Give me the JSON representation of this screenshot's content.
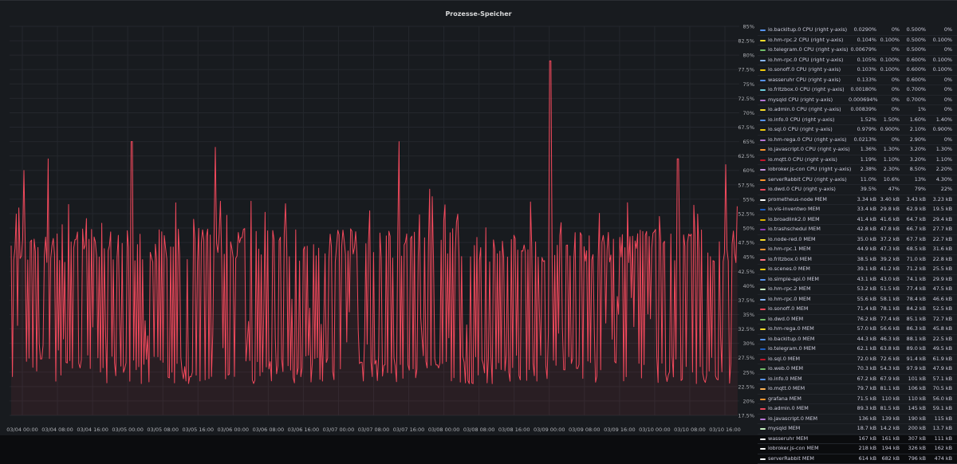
{
  "panel": {
    "title": "Prozesse-Speicher"
  },
  "chart_data": {
    "type": "line",
    "title": "Prozesse-Speicher",
    "right_axis": {
      "ticks": [
        "85%",
        "82.5%",
        "80%",
        "77.5%",
        "75%",
        "72.5%",
        "70%",
        "67.5%",
        "65%",
        "62.5%",
        "60%",
        "57.5%",
        "55%",
        "52.5%",
        "50%",
        "47.5%",
        "45%",
        "42.5%",
        "40%",
        "37.5%",
        "35%",
        "32.5%",
        "30%",
        "27.5%",
        "25%",
        "22.5%",
        "20%",
        "17.5%"
      ],
      "range": [
        17.5,
        85
      ]
    },
    "x_ticks": [
      "03/04 00:00",
      "03/04 08:00",
      "03/04 16:00",
      "03/05 00:00",
      "03/05 08:00",
      "03/05 16:00",
      "03/06 00:00",
      "03/06 08:00",
      "03/06 16:00",
      "03/07 00:00",
      "03/07 08:00",
      "03/07 16:00",
      "03/08 00:00",
      "03/08 08:00",
      "03/08 16:00",
      "03/09 00:00",
      "03/09 08:00",
      "03/09 16:00",
      "03/10 00:00",
      "03/10 08:00",
      "03/10 16:00"
    ],
    "grid": true,
    "series_color": "#f2495c",
    "visible_series": "io.dwd.0 CPU (right y-axis)",
    "series_summary": {
      "baseline": 47,
      "low": 23,
      "peak": 79,
      "peak_at": "03/09 00:00"
    }
  },
  "legend": {
    "rows": [
      {
        "name": "io.backitup.0 CPU (right y-axis)",
        "color": "#5794f2",
        "v": [
          "0.0290%",
          "0%",
          "0.500%",
          "0%"
        ]
      },
      {
        "name": "io.hm-rpc.2 CPU (right y-axis)",
        "color": "#fade2a",
        "v": [
          "0.104%",
          "0.100%",
          "0.500%",
          "0.100%"
        ]
      },
      {
        "name": "io.telegram.0 CPU (right y-axis)",
        "color": "#73bf69",
        "v": [
          "0.00679%",
          "0%",
          "0.500%",
          "0%"
        ]
      },
      {
        "name": "io.hm-rpc.0 CPU (right y-axis)",
        "color": "#8ab8ff",
        "v": [
          "0.105%",
          "0.100%",
          "0.600%",
          "0.100%"
        ]
      },
      {
        "name": "io.sonoff.0 CPU (right y-axis)",
        "color": "#f2cc0c",
        "v": [
          "0.103%",
          "0.100%",
          "0.600%",
          "0.100%"
        ]
      },
      {
        "name": "wasseruhr CPU (right y-axis)",
        "color": "#5794f2",
        "v": [
          "0.133%",
          "0%",
          "0.600%",
          "0%"
        ]
      },
      {
        "name": "io.fritzbox.0 CPU (right y-axis)",
        "color": "#6ed0e0",
        "v": [
          "0.00180%",
          "0%",
          "0.700%",
          "0%"
        ]
      },
      {
        "name": "mysqld CPU (right y-axis)",
        "color": "#b877d9",
        "v": [
          "0.000694%",
          "0%",
          "0.700%",
          "0%"
        ]
      },
      {
        "name": "io.admin.0 CPU (right y-axis)",
        "color": "#fade2a",
        "v": [
          "0.00839%",
          "0%",
          "1%",
          "0%"
        ]
      },
      {
        "name": "io.info.0 CPU (right y-axis)",
        "color": "#5794f2",
        "v": [
          "1.52%",
          "1.50%",
          "1.60%",
          "1.40%"
        ]
      },
      {
        "name": "io.sql.0 CPU (right y-axis)",
        "color": "#f2cc0c",
        "v": [
          "0.979%",
          "0.900%",
          "2.10%",
          "0.900%"
        ]
      },
      {
        "name": "io.hm-rega.0 CPU (right y-axis)",
        "color": "#b877d9",
        "v": [
          "0.0213%",
          "0%",
          "2.90%",
          "0%"
        ]
      },
      {
        "name": "io.javascript.0 CPU (right y-axis)",
        "color": "#ff9830",
        "v": [
          "1.36%",
          "1.30%",
          "3.20%",
          "1.30%"
        ]
      },
      {
        "name": "io.mqtt.0 CPU (right y-axis)",
        "color": "#c4162a",
        "v": [
          "1.19%",
          "1.10%",
          "3.20%",
          "1.10%"
        ]
      },
      {
        "name": "iobroker.js-con CPU (right y-axis)",
        "color": "#ca95e5",
        "v": [
          "2.38%",
          "2.30%",
          "8.50%",
          "2.20%"
        ]
      },
      {
        "name": "serverRabbit CPU (right y-axis)",
        "color": "#ff9830",
        "v": [
          "11.0%",
          "10.6%",
          "13%",
          "4.30%"
        ]
      },
      {
        "name": "io.dwd.0 CPU (right y-axis)",
        "color": "#f2495c",
        "v": [
          "39.5%",
          "47%",
          "79%",
          "22%"
        ]
      },
      {
        "name": "prometheus-node MEM",
        "color": "#ffffff",
        "v": [
          "3.34 kB",
          "3.40 kB",
          "3.43 kB",
          "3.23 kB"
        ]
      },
      {
        "name": "io.vis-inventwo MEM",
        "color": "#1f60c4",
        "v": [
          "33.4 kB",
          "29.8 kB",
          "62.9 kB",
          "19.5 kB"
        ]
      },
      {
        "name": "io.broadlink2.0 MEM",
        "color": "#e0b400",
        "v": [
          "41.4 kB",
          "41.6 kB",
          "64.7 kB",
          "29.4 kB"
        ]
      },
      {
        "name": "io.trashschedul MEM",
        "color": "#8f3bb8",
        "v": [
          "42.8 kB",
          "47.8 kB",
          "66.7 kB",
          "27.7 kB"
        ]
      },
      {
        "name": "io.node-red.0 MEM",
        "color": "#fade2a",
        "v": [
          "35.0 kB",
          "37.2 kB",
          "67.7 kB",
          "22.7 kB"
        ]
      },
      {
        "name": "io.hm-rpc.1 MEM",
        "color": "#ff9830",
        "v": [
          "44.9 kB",
          "47.3 kB",
          "68.5 kB",
          "31.6 kB"
        ]
      },
      {
        "name": "io.fritzbox.0 MEM",
        "color": "#ff7383",
        "v": [
          "38.5 kB",
          "39.2 kB",
          "71.0 kB",
          "22.8 kB"
        ]
      },
      {
        "name": "io.scenes.0 MEM",
        "color": "#f2cc0c",
        "v": [
          "39.1 kB",
          "41.2 kB",
          "71.2 kB",
          "25.5 kB"
        ]
      },
      {
        "name": "io.simple-api.0 MEM",
        "color": "#5794f2",
        "v": [
          "43.1 kB",
          "43.0 kB",
          "74.1 kB",
          "29.9 kB"
        ]
      },
      {
        "name": "io.hm-rpc.2 MEM",
        "color": "#c8f2c2",
        "v": [
          "53.2 kB",
          "51.5 kB",
          "77.4 kB",
          "47.5 kB"
        ]
      },
      {
        "name": "io.hm-rpc.0 MEM",
        "color": "#8ab8ff",
        "v": [
          "55.6 kB",
          "58.1 kB",
          "78.4 kB",
          "46.6 kB"
        ]
      },
      {
        "name": "io.sonoff.0 MEM",
        "color": "#f2495c",
        "v": [
          "71.4 kB",
          "78.1 kB",
          "84.2 kB",
          "52.5 kB"
        ]
      },
      {
        "name": "io.dwd.0 MEM",
        "color": "#73bf69",
        "v": [
          "76.2 kB",
          "77.4 kB",
          "85.1 kB",
          "72.7 kB"
        ]
      },
      {
        "name": "io.hm-rega.0 MEM",
        "color": "#fade2a",
        "v": [
          "57.0 kB",
          "56.6 kB",
          "86.3 kB",
          "45.8 kB"
        ]
      },
      {
        "name": "io.backitup.0 MEM",
        "color": "#5794f2",
        "v": [
          "44.3 kB",
          "46.3 kB",
          "88.1 kB",
          "22.5 kB"
        ]
      },
      {
        "name": "io.telegram.0 MEM",
        "color": "#1f60c4",
        "v": [
          "62.1 kB",
          "63.8 kB",
          "89.0 kB",
          "49.5 kB"
        ]
      },
      {
        "name": "io.sql.0 MEM",
        "color": "#c4162a",
        "v": [
          "72.0 kB",
          "72.6 kB",
          "91.4 kB",
          "61.9 kB"
        ]
      },
      {
        "name": "io.web.0 MEM",
        "color": "#73bf69",
        "v": [
          "70.3 kB",
          "54.3 kB",
          "97.9 kB",
          "47.9 kB"
        ]
      },
      {
        "name": "io.info.0 MEM",
        "color": "#5794f2",
        "v": [
          "67.2 kB",
          "67.9 kB",
          "101 kB",
          "57.1 kB"
        ]
      },
      {
        "name": "io.mqtt.0 MEM",
        "color": "#ffb357",
        "v": [
          "79.7 kB",
          "81.1 kB",
          "106 kB",
          "70.5 kB"
        ]
      },
      {
        "name": "grafana MEM",
        "color": "#ff9830",
        "v": [
          "71.5 kB",
          "110 kB",
          "110 kB",
          "56.0 kB"
        ]
      },
      {
        "name": "io.admin.0 MEM",
        "color": "#f2495c",
        "v": [
          "89.3 kB",
          "81.5 kB",
          "145 kB",
          "59.1 kB"
        ]
      },
      {
        "name": "io.javascript.0 MEM",
        "color": "#b877d9",
        "v": [
          "136 kB",
          "139 kB",
          "190 kB",
          "115 kB"
        ]
      },
      {
        "name": "mysqld MEM",
        "color": "#c8f2c2",
        "v": [
          "18.7 kB",
          "14.2 kB",
          "200 kB",
          "13.7 kB"
        ]
      },
      {
        "name": "wasseruhr MEM",
        "color": "#ffffff",
        "v": [
          "167 kB",
          "161 kB",
          "307 kB",
          "111 kB"
        ]
      },
      {
        "name": "iobroker.js-con MEM",
        "color": "#ffffff",
        "v": [
          "218 kB",
          "194 kB",
          "326 kB",
          "162 kB"
        ]
      },
      {
        "name": "serverRabbit MEM",
        "color": "#ffffff",
        "v": [
          "614 kB",
          "682 kB",
          "796 kB",
          "474 kB"
        ]
      }
    ]
  }
}
